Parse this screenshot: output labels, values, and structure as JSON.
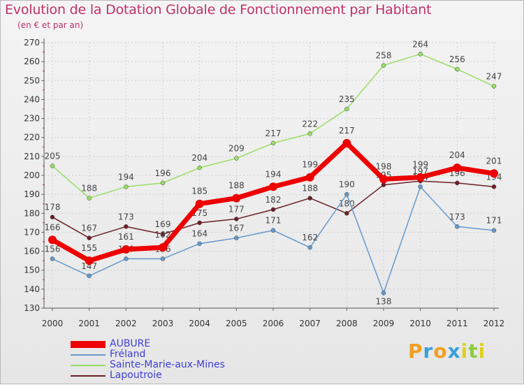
{
  "chart_data": {
    "type": "line",
    "title": "Evolution de la Dotation Globale de Fonctionnement par Habitant",
    "subtitle": "(en € et par an)",
    "xlabel": "",
    "ylabel": "",
    "ylim": [
      130,
      270
    ],
    "yticks": [
      "130",
      "140",
      "150",
      "160",
      "170",
      "180",
      "190",
      "200",
      "210",
      "220",
      "230",
      "240",
      "250",
      "260",
      "270"
    ],
    "categories": [
      "2000",
      "2001",
      "2002",
      "2003",
      "2004",
      "2005",
      "2006",
      "2007",
      "2008",
      "2009",
      "2010",
      "2011",
      "2012"
    ],
    "grid": true,
    "legend_position": "bottom-left",
    "series": [
      {
        "name": "Sainte-Marie-aux-Mines",
        "color": "#99dd66",
        "values": [
          205,
          188,
          194,
          196,
          204,
          209,
          217,
          222,
          235,
          258,
          264,
          256,
          247
        ]
      },
      {
        "name": "Lapoutroie",
        "color": "#6b1f28",
        "values": [
          178,
          167,
          173,
          169,
          175,
          177,
          182,
          188,
          180,
          195,
          197,
          196,
          194
        ]
      },
      {
        "name": "Fréland",
        "color": "#6699cc",
        "values": [
          156,
          147,
          156,
          156,
          164,
          167,
          171,
          162,
          190,
          138,
          194,
          173,
          171
        ]
      },
      {
        "name": "AUBURE",
        "color": "#ee0000",
        "values": [
          166,
          155,
          161,
          162,
          185,
          188,
          194,
          199,
          217,
          198,
          199,
          204,
          201
        ]
      }
    ],
    "legend": [
      "AUBURE",
      "Fréland",
      "Sainte-Marie-aux-Mines",
      "Lapoutroie"
    ]
  },
  "brand": {
    "letters": [
      "P",
      "r",
      "o",
      "x",
      "i",
      "t",
      "i"
    ],
    "colors": [
      "#f0a020",
      "#39a0d8",
      "#f0a020",
      "#39a0d8",
      "#e0d020",
      "#8ecb3c",
      "#e0d020"
    ]
  }
}
